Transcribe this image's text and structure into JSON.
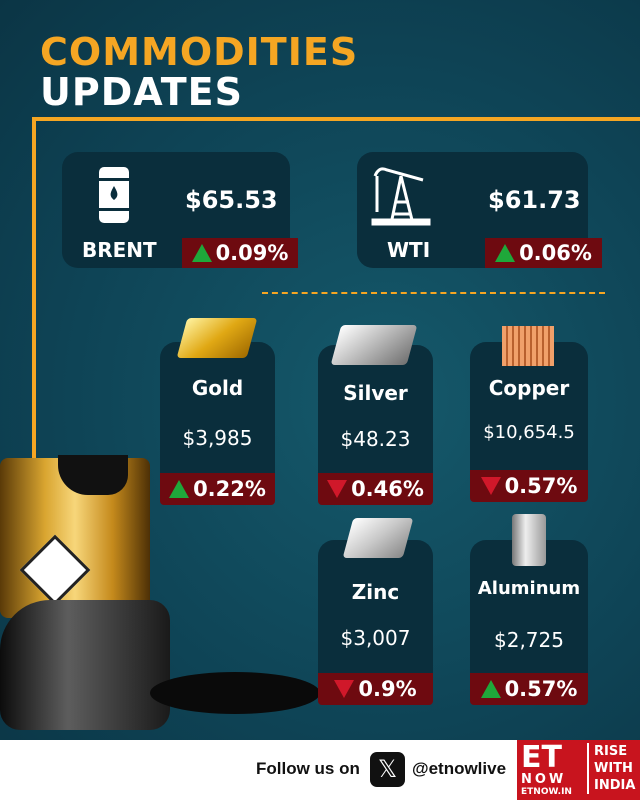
{
  "header": {
    "line1": "COMMODITIES",
    "line2": "UPDATES"
  },
  "energy": [
    {
      "name": "BRENT",
      "price": "$65.53",
      "change": "0.09%",
      "direction": "up",
      "icon": "oil-barrel-icon"
    },
    {
      "name": "WTI",
      "price": "$61.73",
      "change": "0.06%",
      "direction": "up",
      "icon": "oil-pump-icon"
    }
  ],
  "metals": [
    {
      "name": "Gold",
      "price": "$3,985",
      "change": "0.22%",
      "direction": "up",
      "icon": "gold-bars-icon"
    },
    {
      "name": "Silver",
      "price": "$48.23",
      "change": "0.46%",
      "direction": "down",
      "icon": "silver-bars-icon"
    },
    {
      "name": "Copper",
      "price": "$10,654.5",
      "change": "0.57%",
      "direction": "down",
      "icon": "copper-pipes-icon"
    },
    {
      "name": "Zinc",
      "price": "$3,007",
      "change": "0.9%",
      "direction": "down",
      "icon": "zinc-bars-icon"
    },
    {
      "name": "Aluminum",
      "price": "$2,725",
      "change": "0.57%",
      "direction": "up",
      "icon": "aluminum-can-icon"
    }
  ],
  "footer": {
    "follow": "Follow us on",
    "handle": "@etnowlive",
    "logo_et": "ET",
    "logo_now": "NOW",
    "logo_url": "ETNOW.IN",
    "tagline": [
      "RISE",
      "WITH",
      "INDIA"
    ]
  },
  "colors": {
    "accent": "#f5a623",
    "up": "#1fa83a",
    "down": "#d0182a",
    "badge": "#6e0a10",
    "card": "#0a2e3c"
  }
}
